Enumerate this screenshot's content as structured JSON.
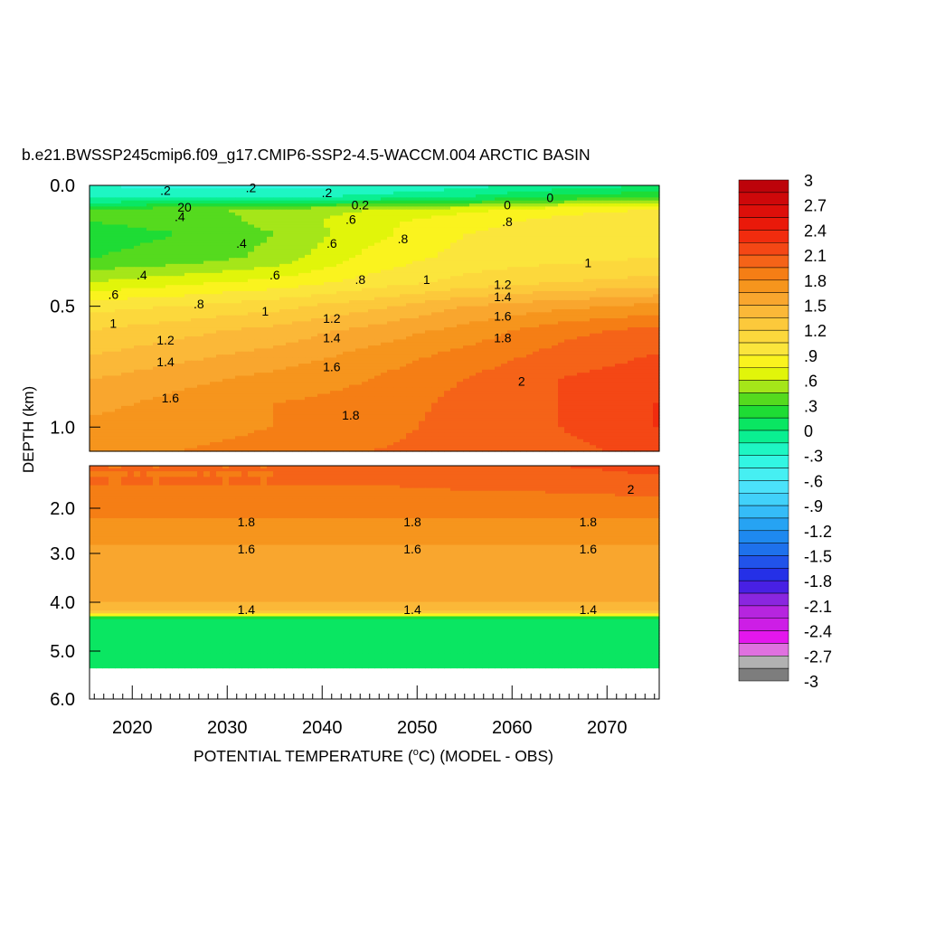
{
  "chart_data": {
    "type": "heatmap",
    "title": "b.e21.BWSSP245cmip6.f09_g17.CMIP6-SSP2-4.5-WACCM.004 ARCTIC BASIN",
    "xlabel": "POTENTIAL TEMPERATURE (",
    "xlabel_unit_sup": "o",
    "xlabel_end": "C) (MODEL - OBS)",
    "ylabel": "DEPTH (km)",
    "xlim": [
      2015.5,
      2075.5
    ],
    "x_ticks": [
      2020,
      2030,
      2040,
      2050,
      2060,
      2070
    ],
    "x_tick_labels": [
      "2020",
      "2030",
      "2040",
      "2050",
      "2060",
      "2070"
    ],
    "upper_panel": {
      "ylim": [
        0.0,
        1.1
      ],
      "y_ticks": [
        0.0,
        0.5,
        1.0
      ],
      "y_tick_labels": [
        "0.0",
        "0.5",
        "1.0"
      ]
    },
    "lower_panel": {
      "ylim": [
        1.1,
        6.0
      ],
      "y_ticks": [
        2.0,
        3.0,
        4.0,
        5.0,
        6.0
      ],
      "y_tick_labels": [
        "2.0",
        "3.0",
        "4.0",
        "5.0",
        "6.0"
      ]
    },
    "colorbar": {
      "min": -3,
      "max": 3,
      "interval": 0.15,
      "labels": [
        "3",
        "2.7",
        "2.4",
        "2.1",
        "1.8",
        "1.5",
        "1.2",
        ".9",
        ".6",
        ".3",
        "0",
        "-.3",
        "-.6",
        "-.9",
        "-1.2",
        "-1.5",
        "-1.8",
        "-2.1",
        "-2.4",
        "-2.7",
        "-3"
      ],
      "label_values": [
        3,
        2.7,
        2.4,
        2.1,
        1.8,
        1.5,
        1.2,
        0.9,
        0.6,
        0.3,
        0,
        -0.3,
        -0.6,
        -0.9,
        -1.2,
        -1.5,
        -1.8,
        -2.1,
        -2.4,
        -2.7,
        -3
      ]
    },
    "field_upper": {
      "years": [
        2016,
        2025,
        2035,
        2045,
        2055,
        2065,
        2075
      ],
      "depths": [
        0.0,
        0.05,
        0.1,
        0.15,
        0.2,
        0.3,
        0.4,
        0.5,
        0.6,
        0.7,
        0.8,
        0.9,
        1.0,
        1.1
      ],
      "values": [
        [
          -0.3,
          -0.35,
          -0.35,
          -0.3,
          -0.2,
          -0.1,
          0.0
        ],
        [
          -0.2,
          -0.2,
          -0.2,
          -0.1,
          0.0,
          0.2,
          0.3
        ],
        [
          0.3,
          0.4,
          0.5,
          0.6,
          0.7,
          0.85,
          0.9
        ],
        [
          0.3,
          0.35,
          0.5,
          0.7,
          0.85,
          0.95,
          1.0
        ],
        [
          0.25,
          0.3,
          0.45,
          0.7,
          0.9,
          0.95,
          1.0
        ],
        [
          0.3,
          0.35,
          0.5,
          0.8,
          0.95,
          1.0,
          1.05
        ],
        [
          0.6,
          0.7,
          0.8,
          0.95,
          1.1,
          1.2,
          1.25
        ],
        [
          1.0,
          1.05,
          1.15,
          1.3,
          1.5,
          1.6,
          1.7
        ],
        [
          1.2,
          1.3,
          1.4,
          1.55,
          1.7,
          1.9,
          2.0
        ],
        [
          1.35,
          1.45,
          1.55,
          1.7,
          1.85,
          2.0,
          2.1
        ],
        [
          1.5,
          1.6,
          1.7,
          1.8,
          1.95,
          2.1,
          2.2
        ],
        [
          1.6,
          1.7,
          1.8,
          1.85,
          2.0,
          2.1,
          2.25
        ],
        [
          1.7,
          1.75,
          1.8,
          1.9,
          2.0,
          2.1,
          2.25
        ],
        [
          1.75,
          1.8,
          1.85,
          1.95,
          2.0,
          2.05,
          2.15
        ]
      ]
    },
    "field_lower": {
      "years": [
        2016,
        2025,
        2035,
        2045,
        2055,
        2065,
        2075
      ],
      "depths": [
        1.1,
        1.5,
        2.0,
        2.5,
        3.0,
        3.5,
        4.0,
        4.2,
        4.3,
        4.35,
        5.35
      ],
      "values": [
        [
          1.95,
          1.95,
          1.95,
          2.0,
          2.05,
          2.1,
          2.15
        ],
        [
          1.95,
          1.95,
          1.95,
          1.95,
          1.98,
          2.0,
          2.05
        ],
        [
          1.85,
          1.85,
          1.85,
          1.85,
          1.85,
          1.85,
          1.85
        ],
        [
          1.75,
          1.75,
          1.75,
          1.75,
          1.75,
          1.75,
          1.75
        ],
        [
          1.6,
          1.6,
          1.6,
          1.6,
          1.6,
          1.6,
          1.6
        ],
        [
          1.55,
          1.55,
          1.55,
          1.55,
          1.55,
          1.55,
          1.55
        ],
        [
          1.5,
          1.5,
          1.5,
          1.5,
          1.5,
          1.5,
          1.5
        ],
        [
          1.3,
          1.3,
          1.3,
          1.3,
          1.3,
          1.3,
          1.3
        ],
        [
          0.4,
          0.4,
          0.4,
          0.4,
          0.4,
          0.4,
          0.4
        ],
        [
          0.0,
          0.0,
          0.0,
          0.0,
          0.0,
          0.0,
          0.0
        ],
        [
          0.0,
          0.0,
          0.0,
          0.0,
          0.0,
          0.0,
          0.0
        ]
      ]
    },
    "contour_labels": [
      {
        "text": ".2",
        "x": 2023.5,
        "depth": 0.02,
        "panel": "upper"
      },
      {
        "text": ".2",
        "x": 2032.5,
        "depth": 0.01,
        "panel": "upper"
      },
      {
        "text": ".2",
        "x": 2040.5,
        "depth": 0.03,
        "panel": "upper"
      },
      {
        "text": "20",
        "x": 2025.5,
        "depth": 0.09,
        "panel": "upper"
      },
      {
        "text": ".4",
        "x": 2025.0,
        "depth": 0.13,
        "panel": "upper"
      },
      {
        "text": "0.2",
        "x": 2044.0,
        "depth": 0.08,
        "panel": "upper"
      },
      {
        "text": ".6",
        "x": 2043.0,
        "depth": 0.14,
        "panel": "upper"
      },
      {
        "text": "0",
        "x": 2059.5,
        "depth": 0.08,
        "panel": "upper"
      },
      {
        "text": ".8",
        "x": 2059.5,
        "depth": 0.15,
        "panel": "upper"
      },
      {
        "text": "0",
        "x": 2064.0,
        "depth": 0.05,
        "panel": "upper"
      },
      {
        "text": ".4",
        "x": 2031.5,
        "depth": 0.24,
        "panel": "upper"
      },
      {
        "text": ".6",
        "x": 2041.0,
        "depth": 0.24,
        "panel": "upper"
      },
      {
        "text": ".8",
        "x": 2048.5,
        "depth": 0.22,
        "panel": "upper"
      },
      {
        "text": ".4",
        "x": 2021.0,
        "depth": 0.37,
        "panel": "upper"
      },
      {
        "text": ".6",
        "x": 2035.0,
        "depth": 0.37,
        "panel": "upper"
      },
      {
        "text": ".8",
        "x": 2044.0,
        "depth": 0.39,
        "panel": "upper"
      },
      {
        "text": "1",
        "x": 2051.0,
        "depth": 0.39,
        "panel": "upper"
      },
      {
        "text": "1",
        "x": 2068.0,
        "depth": 0.32,
        "panel": "upper"
      },
      {
        "text": ".6",
        "x": 2018.0,
        "depth": 0.45,
        "panel": "upper"
      },
      {
        "text": ".8",
        "x": 2027.0,
        "depth": 0.49,
        "panel": "upper"
      },
      {
        "text": "1",
        "x": 2034.0,
        "depth": 0.52,
        "panel": "upper"
      },
      {
        "text": "1.2",
        "x": 2059.0,
        "depth": 0.41,
        "panel": "upper"
      },
      {
        "text": "1.4",
        "x": 2059.0,
        "depth": 0.46,
        "panel": "upper"
      },
      {
        "text": "1",
        "x": 2018.0,
        "depth": 0.57,
        "panel": "upper"
      },
      {
        "text": "1.2",
        "x": 2041.0,
        "depth": 0.55,
        "panel": "upper"
      },
      {
        "text": "1.6",
        "x": 2059.0,
        "depth": 0.54,
        "panel": "upper"
      },
      {
        "text": "1.2",
        "x": 2023.5,
        "depth": 0.64,
        "panel": "upper"
      },
      {
        "text": "1.4",
        "x": 2041.0,
        "depth": 0.63,
        "panel": "upper"
      },
      {
        "text": "1.8",
        "x": 2059.0,
        "depth": 0.63,
        "panel": "upper"
      },
      {
        "text": "1.4",
        "x": 2023.5,
        "depth": 0.73,
        "panel": "upper"
      },
      {
        "text": "1.6",
        "x": 2041.0,
        "depth": 0.75,
        "panel": "upper"
      },
      {
        "text": "2",
        "x": 2061.0,
        "depth": 0.81,
        "panel": "upper"
      },
      {
        "text": "1.6",
        "x": 2024.0,
        "depth": 0.88,
        "panel": "upper"
      },
      {
        "text": "1.8",
        "x": 2043.0,
        "depth": 0.95,
        "panel": "upper"
      },
      {
        "text": "2",
        "x": 2072.5,
        "depth": 1.6,
        "panel": "lower"
      },
      {
        "text": "1.8",
        "x": 2032.0,
        "depth": 2.3,
        "panel": "lower"
      },
      {
        "text": "1.8",
        "x": 2049.5,
        "depth": 2.3,
        "panel": "lower"
      },
      {
        "text": "1.8",
        "x": 2068.0,
        "depth": 2.3,
        "panel": "lower"
      },
      {
        "text": "1.6",
        "x": 2032.0,
        "depth": 2.9,
        "panel": "lower"
      },
      {
        "text": "1.6",
        "x": 2049.5,
        "depth": 2.9,
        "panel": "lower"
      },
      {
        "text": "1.6",
        "x": 2068.0,
        "depth": 2.9,
        "panel": "lower"
      },
      {
        "text": "1.4",
        "x": 2032.0,
        "depth": 4.15,
        "panel": "lower"
      },
      {
        "text": "1.4",
        "x": 2049.5,
        "depth": 4.15,
        "panel": "lower"
      },
      {
        "text": "1.4",
        "x": 2068.0,
        "depth": 4.15,
        "panel": "lower"
      }
    ]
  }
}
